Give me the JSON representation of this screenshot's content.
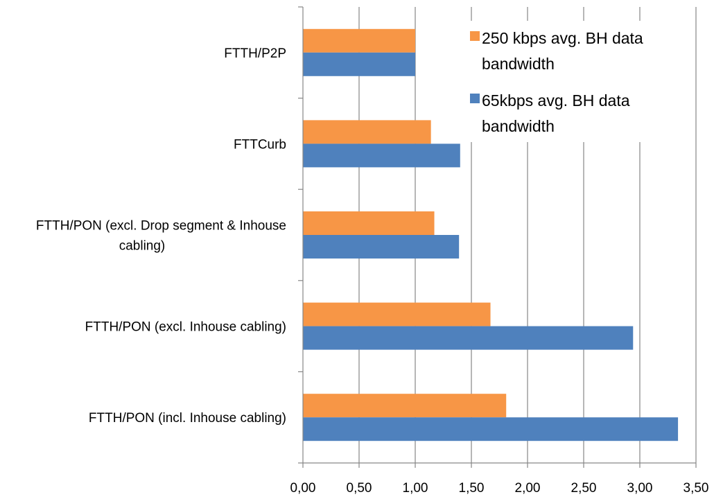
{
  "chart_data": {
    "type": "bar",
    "orientation": "horizontal",
    "categories": [
      [
        "FTTH/P2P"
      ],
      [
        "FTTCurb"
      ],
      [
        "FTTH/PON (excl. Drop segment & Inhouse",
        "cabling)"
      ],
      [
        "FTTH/PON (excl. Inhouse cabling)"
      ],
      [
        "FTTH/PON (incl. Inhouse cabling)"
      ]
    ],
    "series": [
      {
        "name": "250 kbps avg. BH data bandwidth",
        "legend_lines": [
          "250 kbps avg. BH data",
          "bandwidth"
        ],
        "color": "#F79646",
        "values": [
          1.0,
          1.14,
          1.17,
          1.67,
          1.81
        ]
      },
      {
        "name": "65kbps avg. BH data bandwidth",
        "legend_lines": [
          "65kbps avg. BH data",
          "bandwidth"
        ],
        "color": "#4F81BD",
        "values": [
          1.0,
          1.4,
          1.39,
          2.94,
          3.34
        ]
      }
    ],
    "xlim": [
      0,
      3.5
    ],
    "xticks": [
      "0,00",
      "0,50",
      "1,00",
      "1,50",
      "2,00",
      "2,50",
      "3,00",
      "3,50"
    ],
    "tick_step": 0.5,
    "grid": true,
    "legend_position": "top-right",
    "title": "",
    "xlabel": "",
    "ylabel": ""
  }
}
